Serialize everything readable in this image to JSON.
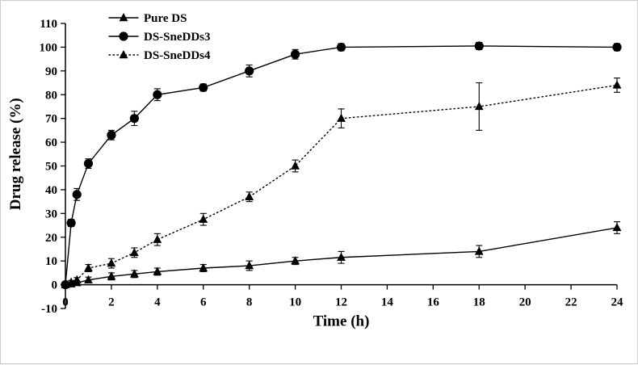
{
  "chart_data": {
    "type": "line",
    "title": "",
    "xlabel": "Time (h)",
    "ylabel": "Drug release (%)",
    "xlim": [
      0,
      24
    ],
    "ylim": [
      -10,
      110
    ],
    "xticks": [
      0,
      2,
      4,
      6,
      8,
      10,
      12,
      14,
      16,
      18,
      20,
      22,
      24
    ],
    "yticks": [
      -10,
      0,
      10,
      20,
      30,
      40,
      50,
      60,
      70,
      80,
      90,
      100,
      110
    ],
    "grid": false,
    "legend_position": "top-left",
    "line_color": "#000000",
    "background": "#ffffff",
    "x": [
      0,
      0.25,
      0.5,
      1,
      2,
      3,
      4,
      6,
      8,
      10,
      12,
      18,
      24
    ],
    "series": [
      {
        "name": "Pure DS",
        "marker": "triangle",
        "line": "solid",
        "values": [
          0,
          0.3,
          0.8,
          2,
          3.5,
          4.5,
          5.5,
          7,
          8,
          10,
          11.5,
          14,
          24
        ],
        "errors": [
          0,
          0.5,
          0.8,
          1.2,
          1.5,
          1.5,
          1.5,
          1.5,
          2,
          1.5,
          2.5,
          2.5,
          2.5
        ]
      },
      {
        "name": "DS-SneDDs3",
        "marker": "circle",
        "line": "solid",
        "values": [
          0,
          26,
          38,
          51,
          63,
          70,
          80,
          83,
          90,
          97,
          100,
          100.5,
          100
        ],
        "errors": [
          0,
          1.5,
          2.5,
          2,
          2,
          3,
          2.5,
          1.5,
          2.5,
          2,
          1.5,
          1.5,
          1.5
        ]
      },
      {
        "name": "DS-SneDDs4",
        "marker": "triangle",
        "line": "dotted",
        "values": [
          0,
          1,
          2,
          7,
          9,
          13.5,
          19,
          27.5,
          37,
          50,
          70,
          75,
          84
        ],
        "errors": [
          0,
          0.8,
          1,
          1.5,
          2,
          2,
          2.5,
          2.5,
          2,
          2.5,
          4,
          10,
          3
        ]
      }
    ]
  }
}
